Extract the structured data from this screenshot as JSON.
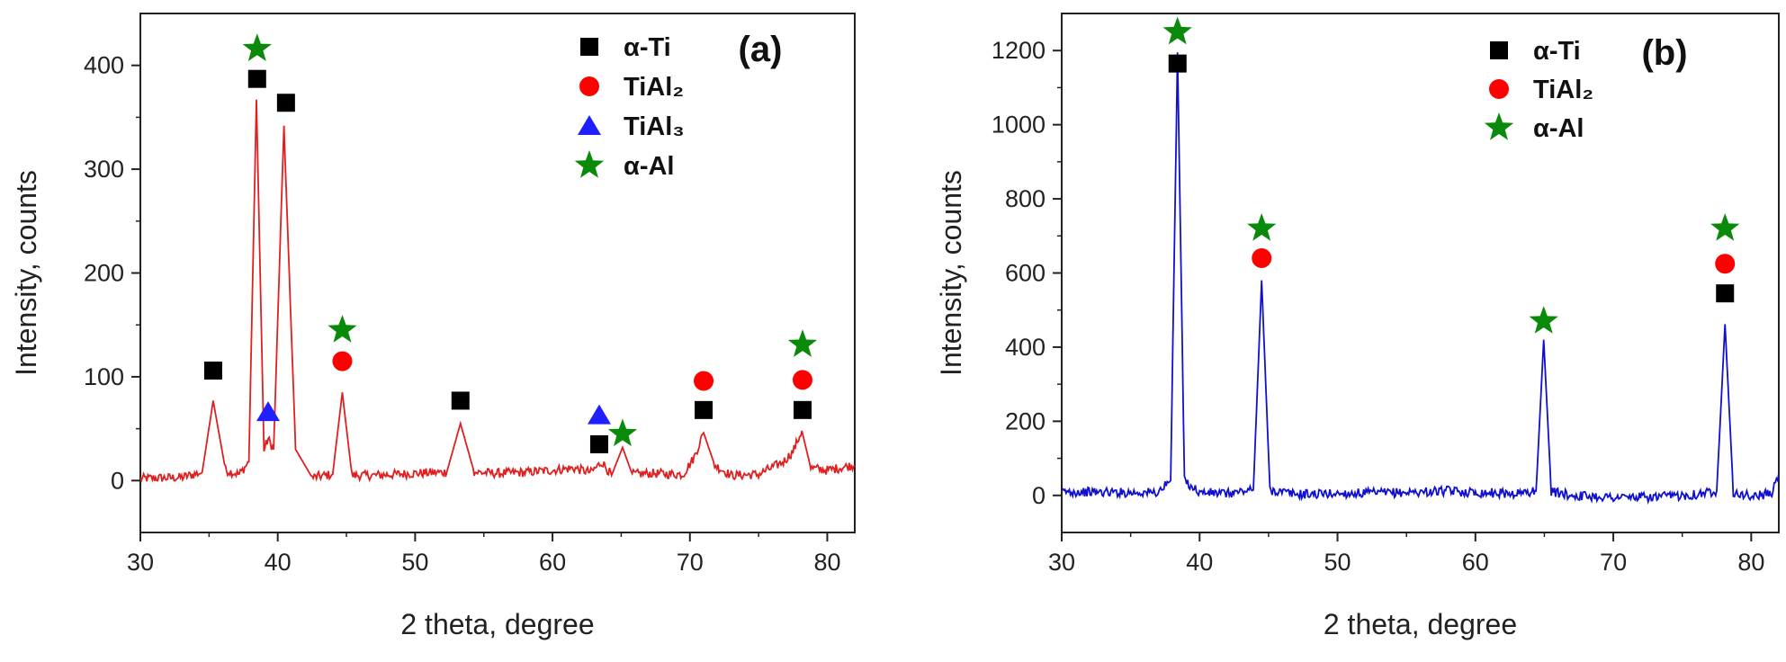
{
  "chart_data": [
    {
      "type": "line",
      "panel_label": "(a)",
      "xlabel": "2 theta, degree",
      "ylabel": "Intensity, counts",
      "xlim": [
        30,
        82
      ],
      "ylim": [
        -50,
        450
      ],
      "xticks": [
        30,
        40,
        50,
        60,
        70,
        80
      ],
      "yticks": [
        0,
        100,
        200,
        300,
        400
      ],
      "line_color": "#e02020",
      "series": [
        {
          "x": [
            30,
            33,
            34.5,
            35.3,
            36.2,
            37.2,
            37.9,
            38.45,
            39.0,
            39.3,
            39.7,
            40.45,
            41.3,
            42.5,
            44.0,
            44.7,
            45.4,
            47,
            50,
            52.3,
            53.3,
            54.3,
            56,
            58,
            60,
            61.5,
            62.8,
            63.6,
            64.3,
            65.1,
            65.8,
            67,
            69.5,
            70.3,
            71.0,
            71.8,
            73,
            75,
            76.8,
            77.5,
            78.15,
            78.8,
            80,
            82
          ],
          "y": [
            2,
            3,
            8,
            77,
            10,
            6,
            18,
            367,
            30,
            40,
            30,
            342,
            30,
            3,
            6,
            85,
            5,
            5,
            7,
            8,
            55,
            8,
            7,
            8,
            10,
            12,
            8,
            18,
            5,
            32,
            6,
            7,
            6,
            22,
            46,
            15,
            5,
            6,
            18,
            28,
            48,
            12,
            10,
            15
          ]
        }
      ],
      "legend": [
        {
          "label": "α-Ti",
          "marker": "square",
          "color": "#000000"
        },
        {
          "label": "TiAl₂",
          "marker": "circle",
          "color": "#ff0000"
        },
        {
          "label": "TiAl₃",
          "marker": "triangle",
          "color": "#1f1fff"
        },
        {
          "label": "α-Al",
          "marker": "star",
          "color": "#0a8a0a"
        }
      ],
      "annotations": [
        {
          "marker": "square",
          "x": 35.3,
          "y": 106
        },
        {
          "marker": "star",
          "x": 38.5,
          "y": 416
        },
        {
          "marker": "square",
          "x": 38.5,
          "y": 387
        },
        {
          "marker": "square",
          "x": 40.6,
          "y": 364
        },
        {
          "marker": "triangle",
          "x": 39.3,
          "y": 66
        },
        {
          "marker": "star",
          "x": 44.7,
          "y": 145
        },
        {
          "marker": "circle",
          "x": 44.7,
          "y": 115
        },
        {
          "marker": "square",
          "x": 53.3,
          "y": 77
        },
        {
          "marker": "triangle",
          "x": 63.4,
          "y": 63
        },
        {
          "marker": "square",
          "x": 63.4,
          "y": 35
        },
        {
          "marker": "star",
          "x": 65.1,
          "y": 45
        },
        {
          "marker": "circle",
          "x": 71.0,
          "y": 96
        },
        {
          "marker": "square",
          "x": 71.0,
          "y": 68
        },
        {
          "marker": "star",
          "x": 78.2,
          "y": 131
        },
        {
          "marker": "circle",
          "x": 78.2,
          "y": 97
        },
        {
          "marker": "square",
          "x": 78.2,
          "y": 68
        }
      ]
    },
    {
      "type": "line",
      "panel_label": "(b)",
      "xlabel": "2 theta, degree",
      "ylabel": "Intensity, counts",
      "xlim": [
        30,
        82
      ],
      "ylim": [
        -100,
        1300
      ],
      "xticks": [
        30,
        40,
        50,
        60,
        70,
        80
      ],
      "yticks": [
        0,
        200,
        400,
        600,
        800,
        1000,
        1200
      ],
      "line_color": "#1010d0",
      "series": [
        {
          "x": [
            30,
            35,
            37.0,
            37.9,
            38.4,
            38.9,
            40,
            42,
            43.9,
            44.5,
            45.1,
            47,
            50,
            55,
            58,
            60,
            63,
            64.4,
            64.95,
            65.5,
            67,
            70,
            73,
            76,
            77.5,
            78.1,
            78.7,
            80,
            81.5,
            82
          ],
          "y": [
            10,
            8,
            8,
            40,
            1195,
            40,
            8,
            5,
            15,
            580,
            15,
            3,
            5,
            8,
            12,
            8,
            5,
            12,
            420,
            10,
            0,
            -5,
            -5,
            3,
            12,
            462,
            10,
            -3,
            5,
            60
          ]
        }
      ],
      "legend": [
        {
          "label": "α-Ti",
          "marker": "square",
          "color": "#000000"
        },
        {
          "label": "TiAl₂",
          "marker": "circle",
          "color": "#ff0000"
        },
        {
          "label": "α-Al",
          "marker": "star",
          "color": "#0a8a0a"
        }
      ],
      "annotations": [
        {
          "marker": "star",
          "x": 38.4,
          "y": 1250
        },
        {
          "marker": "square",
          "x": 38.4,
          "y": 1165
        },
        {
          "marker": "star",
          "x": 44.5,
          "y": 720
        },
        {
          "marker": "circle",
          "x": 44.5,
          "y": 640
        },
        {
          "marker": "star",
          "x": 64.95,
          "y": 470
        },
        {
          "marker": "star",
          "x": 78.1,
          "y": 720
        },
        {
          "marker": "circle",
          "x": 78.1,
          "y": 625
        },
        {
          "marker": "square",
          "x": 78.1,
          "y": 545
        }
      ]
    }
  ]
}
